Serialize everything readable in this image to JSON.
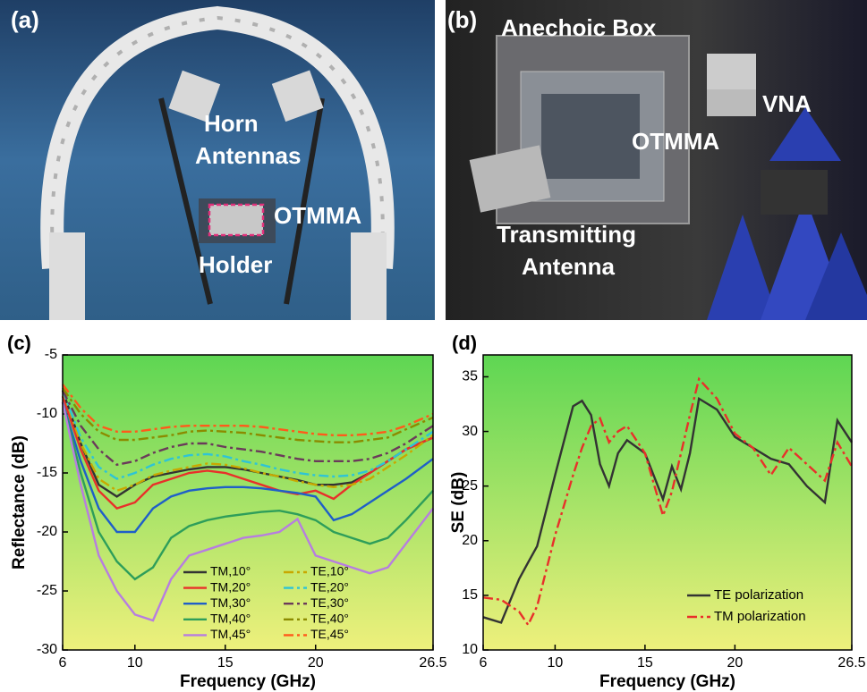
{
  "photos": [
    {
      "label": "(a)",
      "annotations": [
        "Horn",
        "Antennas",
        "OTMMA",
        "Holder"
      ]
    },
    {
      "label": "(b)",
      "annotations": [
        "Anechoic  Box",
        "VNA",
        "OTMMA",
        "Transmitting",
        "Antenna"
      ]
    }
  ],
  "chart_data": [
    {
      "type": "line",
      "panel_label": "(c)",
      "x_label": "Frequency (GHz)",
      "y_label": "Reflectance (dB)",
      "x": [
        6,
        7,
        8,
        9,
        10,
        11,
        12,
        13,
        14,
        15,
        16,
        17,
        18,
        19,
        20,
        21,
        22,
        23,
        24,
        25,
        26.5
      ],
      "xlim": [
        6,
        26.5
      ],
      "xticks": [
        6,
        10,
        15,
        20,
        26.5
      ],
      "ylim": [
        -30,
        -5
      ],
      "yticks": [
        -5,
        -10,
        -15,
        -20,
        -25,
        -30
      ],
      "legend": "lower center",
      "series": [
        {
          "name": "TM,10°",
          "color": "#333333",
          "linestyle": "solid",
          "values": [
            -8,
            -12.5,
            -16,
            -17,
            -16,
            -15.3,
            -15,
            -14.7,
            -14.5,
            -14.5,
            -14.7,
            -15,
            -15.3,
            -15.6,
            -16,
            -16,
            -15.8,
            -15,
            -14,
            -13,
            -12
          ]
        },
        {
          "name": "TM,20°",
          "color": "#e8302a",
          "linestyle": "solid",
          "values": [
            -8.5,
            -13,
            -16.5,
            -18,
            -17.5,
            -16,
            -15.5,
            -15,
            -14.8,
            -15,
            -15.5,
            -16,
            -16.5,
            -16.8,
            -16.5,
            -17.2,
            -16,
            -15,
            -14,
            -13,
            -12
          ]
        },
        {
          "name": "TM,30°",
          "color": "#1f5fc8",
          "linestyle": "solid",
          "values": [
            -9,
            -14,
            -18,
            -20,
            -20,
            -18,
            -17,
            -16.5,
            -16.3,
            -16.2,
            -16.2,
            -16.3,
            -16.5,
            -16.7,
            -17,
            -19,
            -18.5,
            -17.5,
            -16.5,
            -15.5,
            -13.8
          ]
        },
        {
          "name": "TM,40°",
          "color": "#2e9e5a",
          "linestyle": "solid",
          "values": [
            -9,
            -15,
            -20,
            -22.5,
            -24,
            -23,
            -20.5,
            -19.5,
            -19,
            -18.7,
            -18.5,
            -18.3,
            -18.2,
            -18.5,
            -19,
            -20,
            -20.5,
            -21,
            -20.5,
            -19,
            -16.5
          ]
        },
        {
          "name": "TM,45°",
          "color": "#b77de0",
          "linestyle": "solid",
          "values": [
            -9,
            -16,
            -22,
            -25,
            -27,
            -27.5,
            -24,
            -22,
            -21.5,
            -21,
            -20.5,
            -20.3,
            -20,
            -18.9,
            -22,
            -22.5,
            -23,
            -23.5,
            -23,
            -21,
            -18
          ]
        },
        {
          "name": "TE,10°",
          "color": "#c8a800",
          "linestyle": "dashdot",
          "values": [
            -8,
            -12.5,
            -15.5,
            -16.5,
            -16,
            -15.2,
            -14.8,
            -14.5,
            -14.2,
            -14.3,
            -14.6,
            -15,
            -15.3,
            -15.7,
            -16,
            -16.2,
            -16,
            -15.5,
            -14.5,
            -13.5,
            -11.8
          ]
        },
        {
          "name": "TE,20°",
          "color": "#2ec4d6",
          "linestyle": "dashdot",
          "values": [
            -8,
            -12,
            -14.5,
            -15.5,
            -15,
            -14.3,
            -13.8,
            -13.5,
            -13.4,
            -13.6,
            -14,
            -14.3,
            -14.7,
            -15,
            -15.2,
            -15.3,
            -15.2,
            -14.8,
            -14,
            -13,
            -11.5
          ]
        },
        {
          "name": "TE,30°",
          "color": "#6b3a5a",
          "linestyle": "dashdot",
          "values": [
            -8,
            -11,
            -13,
            -14.3,
            -14,
            -13.3,
            -12.8,
            -12.5,
            -12.5,
            -12.8,
            -13,
            -13.2,
            -13.5,
            -13.8,
            -14,
            -14,
            -14,
            -13.8,
            -13.3,
            -12.5,
            -11
          ]
        },
        {
          "name": "TE,40°",
          "color": "#8b8b00",
          "linestyle": "dashdot",
          "values": [
            -7.8,
            -10,
            -11.5,
            -12.2,
            -12.2,
            -12,
            -11.8,
            -11.5,
            -11.4,
            -11.5,
            -11.6,
            -11.8,
            -12,
            -12.2,
            -12.3,
            -12.4,
            -12.4,
            -12.2,
            -12,
            -11.3,
            -10.3
          ]
        },
        {
          "name": "TE,45°",
          "color": "#ff5a1a",
          "linestyle": "dashdot",
          "values": [
            -7.5,
            -9.5,
            -11,
            -11.5,
            -11.5,
            -11.3,
            -11.1,
            -11,
            -11,
            -11,
            -11,
            -11.1,
            -11.3,
            -11.5,
            -11.7,
            -11.8,
            -11.8,
            -11.7,
            -11.5,
            -11,
            -10
          ]
        }
      ]
    },
    {
      "type": "line",
      "panel_label": "(d)",
      "x_label": "Frequency (GHz)",
      "y_label": "SE (dB)",
      "x": [
        6,
        7,
        8,
        8.5,
        9,
        10,
        11,
        11.5,
        12,
        12.5,
        13,
        13.5,
        14,
        15,
        16,
        16.5,
        17,
        17.5,
        18,
        19,
        20,
        21,
        22,
        23,
        24,
        25,
        25.7,
        26.5
      ],
      "xlim": [
        6,
        26.5
      ],
      "xticks": [
        6,
        10,
        15,
        20,
        26.5
      ],
      "ylim": [
        10,
        37
      ],
      "yticks": [
        10,
        15,
        20,
        25,
        30,
        35
      ],
      "legend": "lower right",
      "series": [
        {
          "name": "TE polarization",
          "color": "#333333",
          "linestyle": "solid",
          "values": [
            13,
            12.5,
            16.5,
            18,
            19.5,
            26,
            32.3,
            32.8,
            31.5,
            27,
            25,
            28,
            29.2,
            28,
            23.8,
            26.8,
            24.7,
            28,
            33,
            32,
            29.5,
            28.5,
            27.5,
            27,
            25,
            23.5,
            31,
            29
          ]
        },
        {
          "name": "TM polarization",
          "color": "#e8302a",
          "linestyle": "dashdot",
          "values": [
            14.8,
            14.6,
            13.5,
            12.3,
            14,
            20.5,
            26,
            28.5,
            30.5,
            31.2,
            29,
            30,
            30.5,
            28,
            22.3,
            24.5,
            28,
            31.5,
            34.8,
            33,
            29.8,
            28.5,
            26,
            28.5,
            27,
            25.5,
            29,
            26.8
          ]
        }
      ]
    }
  ]
}
